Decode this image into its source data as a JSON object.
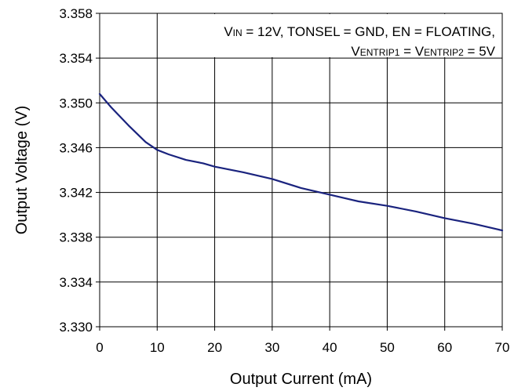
{
  "chart_data": {
    "type": "line",
    "xlabel": "Output Current (mA)",
    "ylabel": "Output Voltage (V)",
    "xlim": [
      0,
      70
    ],
    "ylim": [
      3.33,
      3.358
    ],
    "x_ticks": [
      0,
      10,
      20,
      30,
      40,
      50,
      60,
      70
    ],
    "y_ticks": [
      3.33,
      3.334,
      3.338,
      3.342,
      3.346,
      3.35,
      3.354,
      3.358
    ],
    "grid": true,
    "annotation": {
      "line1": {
        "v": "V",
        "sub": "IN",
        "rest": " = 12V, TONSEL = GND, EN = FLOATING,"
      },
      "line2": {
        "v1": "V",
        "sub1": "ENTRIP1",
        "mid": " = ",
        "v2": "V",
        "sub2": "ENTRIP2",
        "rest": " = 5V"
      }
    },
    "series": [
      {
        "color": "#1a237e",
        "x": [
          0,
          2,
          5,
          8,
          10,
          12,
          15,
          18,
          20,
          25,
          30,
          35,
          40,
          45,
          50,
          55,
          60,
          65,
          70
        ],
        "y": [
          3.3508,
          3.3496,
          3.348,
          3.3465,
          3.3458,
          3.3454,
          3.3449,
          3.3446,
          3.3443,
          3.3438,
          3.3432,
          3.3424,
          3.3418,
          3.3412,
          3.3408,
          3.3403,
          3.3397,
          3.3392,
          3.3386
        ]
      }
    ]
  }
}
